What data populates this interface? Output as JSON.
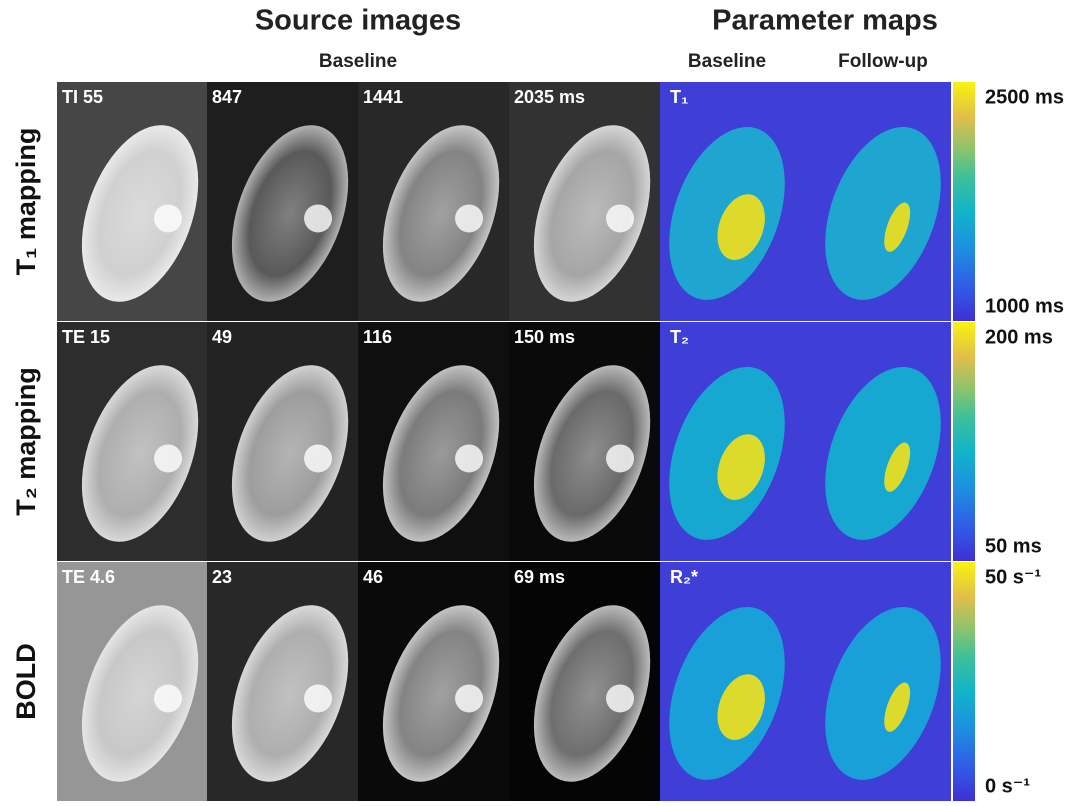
{
  "header": {
    "source_title": "Source images",
    "source_subtitle": "Baseline",
    "maps_title": "Parameter maps",
    "maps_baseline": "Baseline",
    "maps_followup": "Follow-up"
  },
  "rows": [
    {
      "label": "T₁ mapping",
      "source_labels": [
        "TI 55",
        "847",
        "1441",
        "2035 ms"
      ],
      "map_label": "T₁",
      "colorbar_max": "2500 ms",
      "colorbar_min": "1000 ms"
    },
    {
      "label": "T₂ mapping",
      "source_labels": [
        "TE 15",
        "49",
        "116",
        "150 ms"
      ],
      "map_label": "T₂",
      "colorbar_max": "200 ms",
      "colorbar_min": "50 ms"
    },
    {
      "label": "BOLD",
      "source_labels": [
        "TE 4.6",
        "23",
        "46",
        "69 ms"
      ],
      "map_label": "R₂*",
      "colorbar_max": "50 s⁻¹",
      "colorbar_min": "0 s⁻¹"
    }
  ]
}
